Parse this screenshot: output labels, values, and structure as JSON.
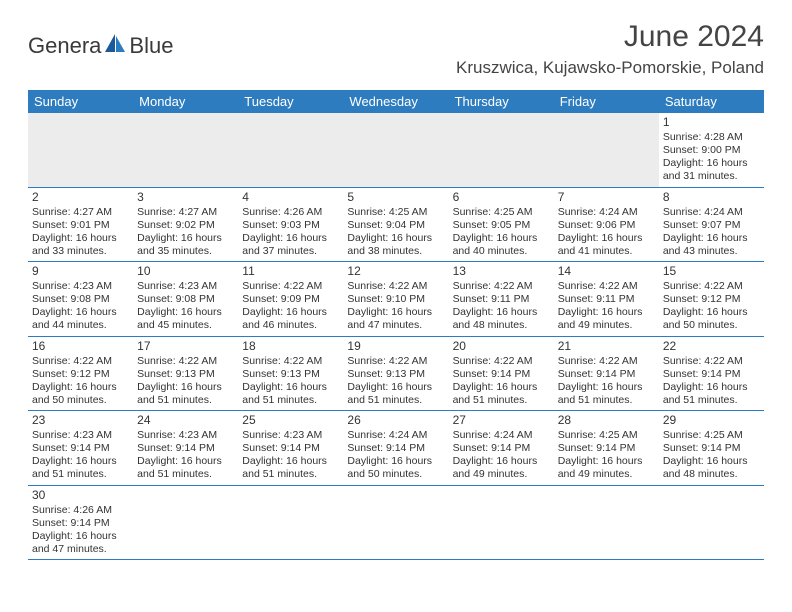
{
  "logo": {
    "text_left": "Genera",
    "text_right": "Blue"
  },
  "title": "June 2024",
  "location": "Kruszwica, Kujawsko-Pomorskie, Poland",
  "colors": {
    "header_bg": "#2e7cc0",
    "header_text": "#ffffff",
    "first_week_bg": "#ececec",
    "border": "#2e7cc0",
    "text": "#333333"
  },
  "day_names": [
    "Sunday",
    "Monday",
    "Tuesday",
    "Wednesday",
    "Thursday",
    "Friday",
    "Saturday"
  ],
  "weeks": [
    [
      null,
      null,
      null,
      null,
      null,
      null,
      {
        "n": "1",
        "sunrise": "Sunrise: 4:28 AM",
        "sunset": "Sunset: 9:00 PM",
        "d1": "Daylight: 16 hours",
        "d2": "and 31 minutes."
      }
    ],
    [
      {
        "n": "2",
        "sunrise": "Sunrise: 4:27 AM",
        "sunset": "Sunset: 9:01 PM",
        "d1": "Daylight: 16 hours",
        "d2": "and 33 minutes."
      },
      {
        "n": "3",
        "sunrise": "Sunrise: 4:27 AM",
        "sunset": "Sunset: 9:02 PM",
        "d1": "Daylight: 16 hours",
        "d2": "and 35 minutes."
      },
      {
        "n": "4",
        "sunrise": "Sunrise: 4:26 AM",
        "sunset": "Sunset: 9:03 PM",
        "d1": "Daylight: 16 hours",
        "d2": "and 37 minutes."
      },
      {
        "n": "5",
        "sunrise": "Sunrise: 4:25 AM",
        "sunset": "Sunset: 9:04 PM",
        "d1": "Daylight: 16 hours",
        "d2": "and 38 minutes."
      },
      {
        "n": "6",
        "sunrise": "Sunrise: 4:25 AM",
        "sunset": "Sunset: 9:05 PM",
        "d1": "Daylight: 16 hours",
        "d2": "and 40 minutes."
      },
      {
        "n": "7",
        "sunrise": "Sunrise: 4:24 AM",
        "sunset": "Sunset: 9:06 PM",
        "d1": "Daylight: 16 hours",
        "d2": "and 41 minutes."
      },
      {
        "n": "8",
        "sunrise": "Sunrise: 4:24 AM",
        "sunset": "Sunset: 9:07 PM",
        "d1": "Daylight: 16 hours",
        "d2": "and 43 minutes."
      }
    ],
    [
      {
        "n": "9",
        "sunrise": "Sunrise: 4:23 AM",
        "sunset": "Sunset: 9:08 PM",
        "d1": "Daylight: 16 hours",
        "d2": "and 44 minutes."
      },
      {
        "n": "10",
        "sunrise": "Sunrise: 4:23 AM",
        "sunset": "Sunset: 9:08 PM",
        "d1": "Daylight: 16 hours",
        "d2": "and 45 minutes."
      },
      {
        "n": "11",
        "sunrise": "Sunrise: 4:22 AM",
        "sunset": "Sunset: 9:09 PM",
        "d1": "Daylight: 16 hours",
        "d2": "and 46 minutes."
      },
      {
        "n": "12",
        "sunrise": "Sunrise: 4:22 AM",
        "sunset": "Sunset: 9:10 PM",
        "d1": "Daylight: 16 hours",
        "d2": "and 47 minutes."
      },
      {
        "n": "13",
        "sunrise": "Sunrise: 4:22 AM",
        "sunset": "Sunset: 9:11 PM",
        "d1": "Daylight: 16 hours",
        "d2": "and 48 minutes."
      },
      {
        "n": "14",
        "sunrise": "Sunrise: 4:22 AM",
        "sunset": "Sunset: 9:11 PM",
        "d1": "Daylight: 16 hours",
        "d2": "and 49 minutes."
      },
      {
        "n": "15",
        "sunrise": "Sunrise: 4:22 AM",
        "sunset": "Sunset: 9:12 PM",
        "d1": "Daylight: 16 hours",
        "d2": "and 50 minutes."
      }
    ],
    [
      {
        "n": "16",
        "sunrise": "Sunrise: 4:22 AM",
        "sunset": "Sunset: 9:12 PM",
        "d1": "Daylight: 16 hours",
        "d2": "and 50 minutes."
      },
      {
        "n": "17",
        "sunrise": "Sunrise: 4:22 AM",
        "sunset": "Sunset: 9:13 PM",
        "d1": "Daylight: 16 hours",
        "d2": "and 51 minutes."
      },
      {
        "n": "18",
        "sunrise": "Sunrise: 4:22 AM",
        "sunset": "Sunset: 9:13 PM",
        "d1": "Daylight: 16 hours",
        "d2": "and 51 minutes."
      },
      {
        "n": "19",
        "sunrise": "Sunrise: 4:22 AM",
        "sunset": "Sunset: 9:13 PM",
        "d1": "Daylight: 16 hours",
        "d2": "and 51 minutes."
      },
      {
        "n": "20",
        "sunrise": "Sunrise: 4:22 AM",
        "sunset": "Sunset: 9:14 PM",
        "d1": "Daylight: 16 hours",
        "d2": "and 51 minutes."
      },
      {
        "n": "21",
        "sunrise": "Sunrise: 4:22 AM",
        "sunset": "Sunset: 9:14 PM",
        "d1": "Daylight: 16 hours",
        "d2": "and 51 minutes."
      },
      {
        "n": "22",
        "sunrise": "Sunrise: 4:22 AM",
        "sunset": "Sunset: 9:14 PM",
        "d1": "Daylight: 16 hours",
        "d2": "and 51 minutes."
      }
    ],
    [
      {
        "n": "23",
        "sunrise": "Sunrise: 4:23 AM",
        "sunset": "Sunset: 9:14 PM",
        "d1": "Daylight: 16 hours",
        "d2": "and 51 minutes."
      },
      {
        "n": "24",
        "sunrise": "Sunrise: 4:23 AM",
        "sunset": "Sunset: 9:14 PM",
        "d1": "Daylight: 16 hours",
        "d2": "and 51 minutes."
      },
      {
        "n": "25",
        "sunrise": "Sunrise: 4:23 AM",
        "sunset": "Sunset: 9:14 PM",
        "d1": "Daylight: 16 hours",
        "d2": "and 51 minutes."
      },
      {
        "n": "26",
        "sunrise": "Sunrise: 4:24 AM",
        "sunset": "Sunset: 9:14 PM",
        "d1": "Daylight: 16 hours",
        "d2": "and 50 minutes."
      },
      {
        "n": "27",
        "sunrise": "Sunrise: 4:24 AM",
        "sunset": "Sunset: 9:14 PM",
        "d1": "Daylight: 16 hours",
        "d2": "and 49 minutes."
      },
      {
        "n": "28",
        "sunrise": "Sunrise: 4:25 AM",
        "sunset": "Sunset: 9:14 PM",
        "d1": "Daylight: 16 hours",
        "d2": "and 49 minutes."
      },
      {
        "n": "29",
        "sunrise": "Sunrise: 4:25 AM",
        "sunset": "Sunset: 9:14 PM",
        "d1": "Daylight: 16 hours",
        "d2": "and 48 minutes."
      }
    ],
    [
      {
        "n": "30",
        "sunrise": "Sunrise: 4:26 AM",
        "sunset": "Sunset: 9:14 PM",
        "d1": "Daylight: 16 hours",
        "d2": "and 47 minutes."
      },
      null,
      null,
      null,
      null,
      null,
      null
    ]
  ]
}
